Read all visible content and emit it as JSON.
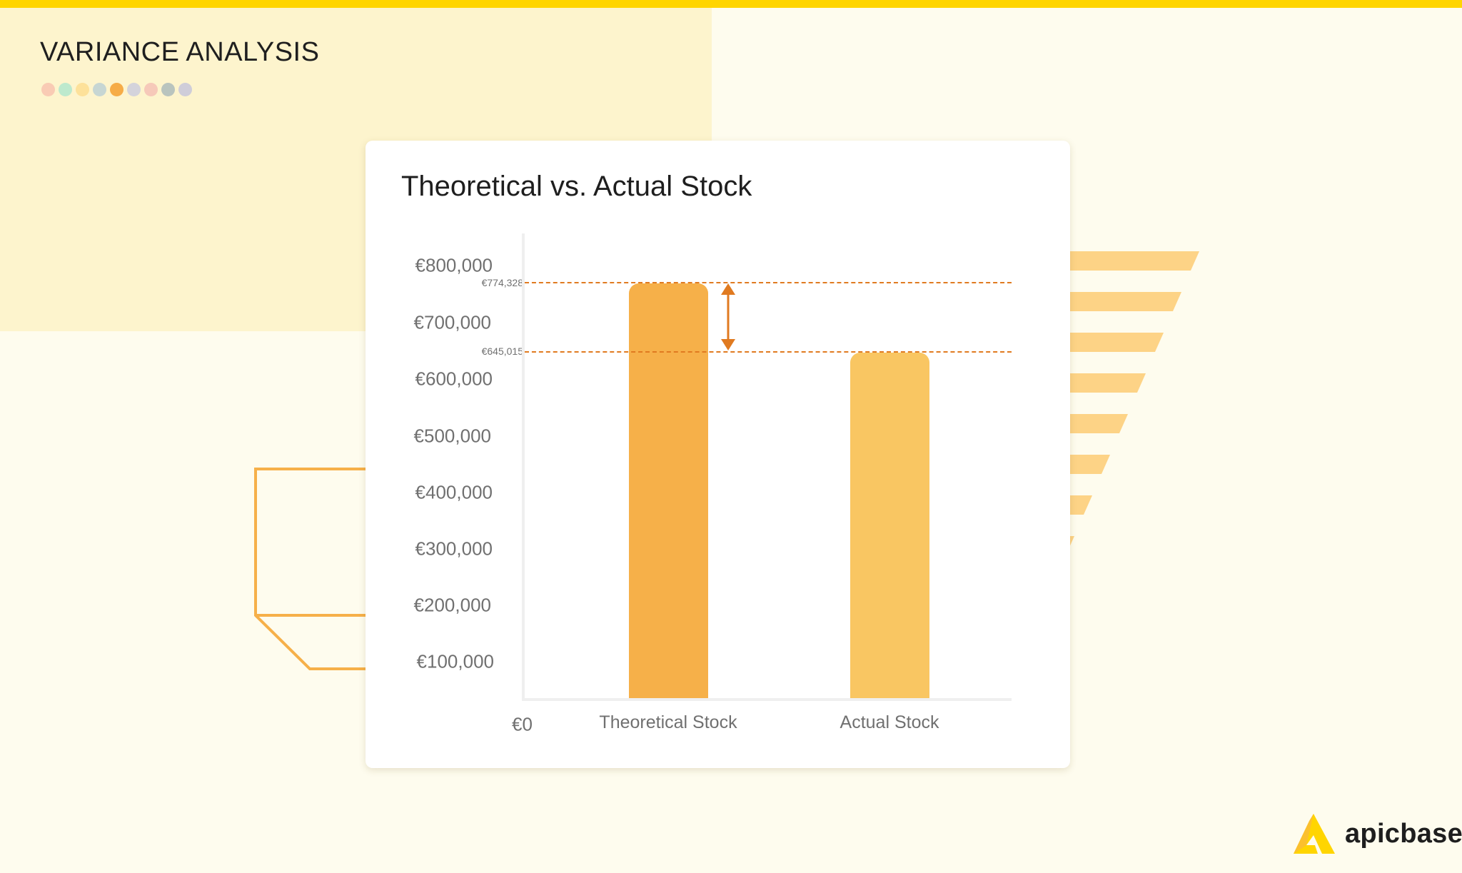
{
  "header": {
    "title": "VARIANCE ANALYSIS",
    "palette_dots": [
      "#f9cbb4",
      "#bde9cd",
      "#fde19a",
      "#c7d6d3",
      "#f6ac47",
      "#d4d3db",
      "#f6c9b9",
      "#b9c4be",
      "#cfcdd9"
    ]
  },
  "colors": {
    "top_bar": "#ffd500",
    "panel": "#fdf4cd",
    "background": "#fefcee",
    "theoretical_bar": "#f6b049",
    "actual_bar": "#f9c662",
    "variance_marker": "#e07a20",
    "decor_stripes": "#fdd386",
    "decor_outline": "#f6b049"
  },
  "card": {
    "title": "Theoretical vs. Actual Stock"
  },
  "chart_data": {
    "type": "bar",
    "title": "Theoretical vs. Actual Stock",
    "categories": [
      "Theoretical Stock",
      "Actual Stock"
    ],
    "values": [
      774328,
      645015
    ],
    "xlabel": "",
    "ylabel": "",
    "ylim": [
      0,
      800000
    ],
    "y_ticks": [
      "€0",
      "€100,000",
      "€200,000",
      "€300,000",
      "€400,000",
      "€500,000",
      "€600,000",
      "€700,000",
      "€800,000"
    ],
    "reference_lines": [
      {
        "label": "€774,328",
        "value": 774328,
        "style": "dashed"
      },
      {
        "label": "€645,015",
        "value": 645015,
        "style": "dashed"
      }
    ],
    "annotations": [
      "double-headed arrow marking variance between €774,328 and €645,015"
    ],
    "grid": false,
    "legend": "none"
  },
  "brand": {
    "name": "apicbase"
  }
}
